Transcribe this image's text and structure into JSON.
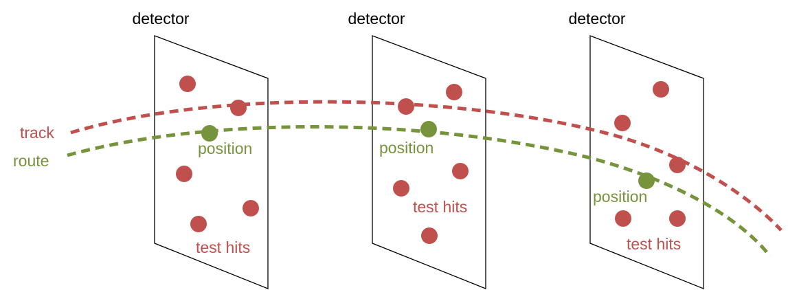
{
  "colors": {
    "track": "#c0504d",
    "route": "#77933c",
    "panel_stroke": "#000000",
    "background": "#ffffff"
  },
  "legend": {
    "track_label": "track",
    "route_label": "route"
  },
  "detectors": [
    {
      "title": "detector",
      "position_label": "position",
      "hits_label": "test hits"
    },
    {
      "title": "detector",
      "position_label": "position",
      "hits_label": "test hits"
    },
    {
      "title": "detector",
      "position_label": "position",
      "hits_label": "test hits"
    }
  ]
}
